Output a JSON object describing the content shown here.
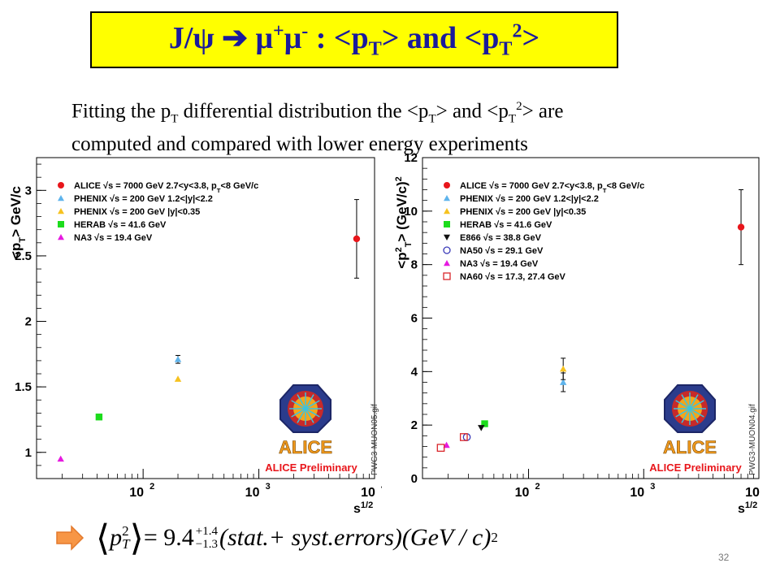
{
  "slide": {
    "title": {
      "a": "J/ψ",
      "arrow": "➔",
      "mu1": "μ",
      "plus": "+",
      "mu2": "μ",
      "minus": "-",
      "b": " : <p",
      "t1": "T",
      "c": "> and <p",
      "t2": "T",
      "sq": "2",
      "d": ">"
    },
    "intro": {
      "l1a": "Fitting the p",
      "l1b": "T",
      "l1c": " differential distribution the <p",
      "l1d": "T",
      "l1e": "> and <p",
      "l1f": "T",
      "l1g": "2",
      "l1h": "> are",
      "l2": "computed and compared with lower energy experiments"
    },
    "formula": {
      "pt": "p",
      "t": "T",
      "two": "2",
      "eq": "= 9.4",
      "up": "+1.4",
      "down": "−1.3",
      "text": "(stat.+ syst.errors)(GeV / c)",
      "sq": "2"
    },
    "page_number": "32",
    "colors": {
      "title_text": "#1a1a9c",
      "title_bg": "#ffff00",
      "arrow": "#f79646"
    }
  },
  "chart_data": [
    {
      "type": "scatter",
      "ylabel": "<p_T> GeV/c",
      "xlabel": "s^1/2",
      "x_scale": "log",
      "xlim": [
        12,
        10000
      ],
      "ylim": [
        0.8,
        3.25
      ],
      "y_ticks": [
        "1",
        "1.5",
        "2",
        "2.5",
        "3"
      ],
      "x_ticks": [
        "10",
        "10",
        "10"
      ],
      "x_tick_exp": [
        "2",
        "3",
        "4"
      ],
      "side_label": "PWG3-MUON05.gif",
      "logo_text": "ALICE",
      "preliminary": "ALICE Preliminary",
      "legend": [
        {
          "label": "ALICE √s = 7000 GeV 2.7<y<3.8, p_T<8 GeV/c",
          "color": "#e8161b",
          "marker": "circle"
        },
        {
          "label": "PHENIX √s = 200 GeV 1.2<|y|<2.2",
          "color": "#5fb4ec",
          "marker": "triangle"
        },
        {
          "label": "PHENIX √s = 200 GeV |y|<0.35",
          "color": "#f6c220",
          "marker": "triangle"
        },
        {
          "label": "HERAB √s = 41.6 GeV",
          "color": "#1cdc1c",
          "marker": "square"
        },
        {
          "label": "NA3 √s = 19.4 GeV",
          "color": "#e61ae0",
          "marker": "triangle"
        }
      ],
      "series": [
        {
          "name": "ALICE √s = 7000 GeV 2.7<y<3.8, p_T<8 GeV/c",
          "x": 7000,
          "y": 2.63,
          "err": 0.3,
          "color": "#e8161b",
          "marker": "circle"
        },
        {
          "name": "PHENIX √s = 200 GeV 1.2<|y|<2.2",
          "x": 200,
          "y": 1.71,
          "err": 0.03,
          "color": "#5fb4ec",
          "marker": "triangle"
        },
        {
          "name": "PHENIX √s = 200 GeV |y|<0.35",
          "x": 200,
          "y": 1.56,
          "err": 0,
          "color": "#f6c220",
          "marker": "triangle"
        },
        {
          "name": "HERAB √s = 41.6 GeV",
          "x": 41.6,
          "y": 1.27,
          "err": 0,
          "color": "#1cdc1c",
          "marker": "square"
        },
        {
          "name": "NA3 √s = 19.4 GeV",
          "x": 19.4,
          "y": 0.95,
          "err": 0,
          "color": "#e61ae0",
          "marker": "triangle"
        }
      ]
    },
    {
      "type": "scatter",
      "ylabel": "<p_T²> (GeV/c)²",
      "xlabel": "s^1/2",
      "x_scale": "log",
      "xlim": [
        12,
        10000
      ],
      "ylim": [
        0,
        12
      ],
      "y_ticks": [
        "0",
        "2",
        "4",
        "6",
        "8",
        "10",
        "12"
      ],
      "x_ticks": [
        "10",
        "10",
        "10"
      ],
      "x_tick_exp": [
        "2",
        "3",
        "4"
      ],
      "side_label": "PWG3-MUON04.gif",
      "logo_text": "ALICE",
      "preliminary": "ALICE Preliminary",
      "legend": [
        {
          "label": "ALICE √s = 7000 GeV 2.7<y<3.8, p_T<8 GeV/c",
          "color": "#e8161b",
          "marker": "circle"
        },
        {
          "label": "PHENIX √s = 200 GeV 1.2<|y|<2.2",
          "color": "#5fb4ec",
          "marker": "triangle"
        },
        {
          "label": "PHENIX √s = 200 GeV |y|<0.35",
          "color": "#f6c220",
          "marker": "triangle"
        },
        {
          "label": "HERAB √s = 41.6 GeV",
          "color": "#1cdc1c",
          "marker": "square"
        },
        {
          "label": "E866 √s = 38.8 GeV",
          "color": "#111111",
          "marker": "triangle-down"
        },
        {
          "label": "NA50 √s = 29.1 GeV",
          "color": "#3a3ab8",
          "marker": "circle-open"
        },
        {
          "label": "NA3 √s = 19.4 GeV",
          "color": "#e61ae0",
          "marker": "triangle"
        },
        {
          "label": "NA60 √s = 17.3, 27.4 GeV",
          "color": "#d9262b",
          "marker": "square-open"
        }
      ],
      "series": [
        {
          "name": "ALICE √s = 7000 GeV 2.7<y<3.8, p_T<8 GeV/c",
          "x": 7000,
          "y": 9.4,
          "err": 1.4,
          "color": "#e8161b",
          "marker": "circle"
        },
        {
          "name": "PHENIX √s = 200 GeV 1.2<|y|<2.2",
          "x": 200,
          "y": 3.6,
          "err": 0.35,
          "color": "#5fb4ec",
          "marker": "triangle"
        },
        {
          "name": "PHENIX √s = 200 GeV |y|<0.35",
          "x": 200,
          "y": 4.1,
          "err": 0.4,
          "color": "#f6c220",
          "marker": "triangle"
        },
        {
          "name": "HERAB √s = 41.6 GeV",
          "x": 41.6,
          "y": 2.05,
          "err": 0,
          "color": "#1cdc1c",
          "marker": "square"
        },
        {
          "name": "E866 √s = 38.8 GeV",
          "x": 38.8,
          "y": 1.9,
          "err": 0,
          "color": "#111111",
          "marker": "triangle-down"
        },
        {
          "name": "NA50 √s = 29.1 GeV",
          "x": 29.1,
          "y": 1.55,
          "err": 0,
          "color": "#3a3ab8",
          "marker": "circle-open"
        },
        {
          "name": "NA3 √s = 19.4 GeV",
          "x": 19.4,
          "y": 1.25,
          "err": 0,
          "color": "#e61ae0",
          "marker": "triangle"
        },
        {
          "name": "NA60 √s = 17.3, 27.4 GeV",
          "x": 17.3,
          "y": 1.15,
          "err": 0,
          "color": "#d9262b",
          "marker": "square-open"
        },
        {
          "name": "NA60 √s = 17.3, 27.4 GeV",
          "x": 27.4,
          "y": 1.55,
          "err": 0,
          "color": "#d9262b",
          "marker": "square-open"
        }
      ]
    }
  ]
}
